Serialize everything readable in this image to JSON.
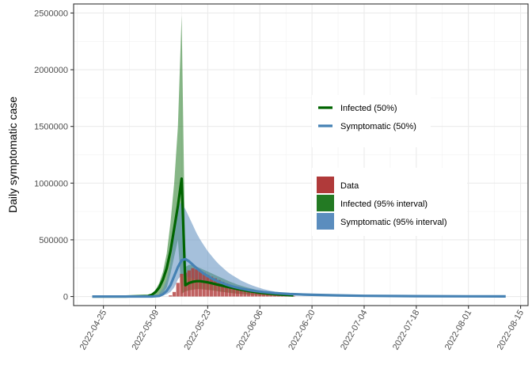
{
  "chart_data": {
    "type": "area",
    "title": "",
    "xlabel": "",
    "ylabel": "Daily symptomatic case",
    "x_ticks": [
      "2022-04-25",
      "2022-05-09",
      "2022-05-23",
      "2022-06-06",
      "2022-06-20",
      "2022-07-04",
      "2022-07-18",
      "2022-08-01",
      "2022-08-15"
    ],
    "y_ticks": [
      "0",
      "500000",
      "1000000",
      "1500000",
      "2000000",
      "2500000"
    ],
    "xlim": [
      "2022-04-17",
      "2022-08-17"
    ],
    "ylim": [
      -80000,
      2580000
    ],
    "grid": true,
    "x_axis": {
      "type": "date",
      "start": "2022-04-17",
      "end": "2022-08-17"
    },
    "legend_lines": [
      {
        "label": "Infected (50%)",
        "color": "#006400"
      },
      {
        "label": "Symptomatic (50%)",
        "color": "#4682B4"
      }
    ],
    "legend_fills": [
      {
        "label": "Data",
        "color": "#B03A3A"
      },
      {
        "label": "Infected (95% interval)",
        "color": "#237A23"
      },
      {
        "label": "Symptomatic (95% interval)",
        "color": "#5B8DBE"
      }
    ],
    "legend_position": "right-inside",
    "series": [
      {
        "name": "Data",
        "kind": "bar",
        "color": "#B03A3A",
        "x": [
          "2022-05-13",
          "2022-05-14",
          "2022-05-15",
          "2022-05-16",
          "2022-05-17",
          "2022-05-18",
          "2022-05-19",
          "2022-05-20",
          "2022-05-21",
          "2022-05-22",
          "2022-05-23",
          "2022-05-24",
          "2022-05-25",
          "2022-05-26",
          "2022-05-27",
          "2022-05-28",
          "2022-05-29",
          "2022-05-30",
          "2022-05-31",
          "2022-06-01",
          "2022-06-02",
          "2022-06-03",
          "2022-06-04",
          "2022-06-05",
          "2022-06-06",
          "2022-06-07",
          "2022-06-08",
          "2022-06-09",
          "2022-06-10",
          "2022-06-11",
          "2022-06-12",
          "2022-06-13",
          "2022-06-14",
          "2022-06-15"
        ],
        "values": [
          10000,
          40000,
          120000,
          200000,
          210000,
          230000,
          250000,
          240000,
          225000,
          210000,
          190000,
          175000,
          160000,
          145000,
          130000,
          115000,
          100000,
          90000,
          80000,
          72000,
          65000,
          58000,
          50000,
          44000,
          38000,
          33000,
          28000,
          24000,
          20000,
          16000,
          13000,
          10000,
          8000,
          5000
        ]
      },
      {
        "name": "Infected (95% interval)",
        "kind": "band",
        "color": "#237A23",
        "x": [
          "2022-05-07",
          "2022-05-08",
          "2022-05-09",
          "2022-05-10",
          "2022-05-11",
          "2022-05-12",
          "2022-05-13",
          "2022-05-14",
          "2022-05-15",
          "2022-05-16",
          "2022-05-17",
          "2022-05-18",
          "2022-05-19",
          "2022-05-20",
          "2022-05-21",
          "2022-05-22",
          "2022-05-23",
          "2022-05-24",
          "2022-05-25",
          "2022-05-26",
          "2022-05-27",
          "2022-05-28",
          "2022-05-29",
          "2022-05-30",
          "2022-05-31",
          "2022-06-01",
          "2022-06-02",
          "2022-06-03",
          "2022-06-04",
          "2022-06-05",
          "2022-06-06",
          "2022-06-07",
          "2022-06-08",
          "2022-06-09",
          "2022-06-10",
          "2022-06-11",
          "2022-06-12",
          "2022-06-13",
          "2022-06-14",
          "2022-06-15"
        ],
        "lower": [
          0,
          0,
          0,
          10000,
          30000,
          80000,
          200000,
          350000,
          500000,
          25000,
          45000,
          55000,
          60000,
          65000,
          65000,
          62000,
          58000,
          55000,
          50000,
          45000,
          40000,
          36000,
          32000,
          28000,
          25000,
          22000,
          19000,
          16000,
          14000,
          12000,
          10000,
          8500,
          7000,
          6000,
          5000,
          4000,
          3000,
          2500,
          2000,
          1000
        ],
        "upper": [
          5000,
          20000,
          60000,
          120000,
          220000,
          380000,
          650000,
          1000000,
          1500000,
          2480000,
          260000,
          280000,
          275000,
          265000,
          250000,
          235000,
          220000,
          205000,
          190000,
          175000,
          160000,
          145000,
          130000,
          118000,
          105000,
          95000,
          85000,
          76000,
          68000,
          60000,
          53000,
          47000,
          41000,
          36000,
          31000,
          27000,
          23000,
          19000,
          16000,
          12000
        ]
      },
      {
        "name": "Symptomatic (95% interval)",
        "kind": "band",
        "color": "#5B8DBE",
        "x": [
          "2022-05-10",
          "2022-05-11",
          "2022-05-12",
          "2022-05-13",
          "2022-05-14",
          "2022-05-15",
          "2022-05-16",
          "2022-05-17",
          "2022-05-18",
          "2022-05-19",
          "2022-05-20",
          "2022-05-21",
          "2022-05-22",
          "2022-05-23",
          "2022-05-24",
          "2022-05-25",
          "2022-05-26",
          "2022-05-27",
          "2022-05-28",
          "2022-05-29",
          "2022-05-30",
          "2022-05-31",
          "2022-06-01",
          "2022-06-02",
          "2022-06-03",
          "2022-06-04",
          "2022-06-05",
          "2022-06-06",
          "2022-06-07",
          "2022-06-08",
          "2022-06-09",
          "2022-06-10",
          "2022-06-12",
          "2022-06-14",
          "2022-06-16",
          "2022-06-18",
          "2022-06-20"
        ],
        "lower": [
          0,
          10000,
          20000,
          40000,
          80000,
          150000,
          190000,
          180000,
          170000,
          160000,
          150000,
          140000,
          130000,
          120000,
          110000,
          100000,
          90000,
          82000,
          75000,
          68000,
          62000,
          56000,
          50000,
          45000,
          40000,
          36000,
          32000,
          28000,
          24000,
          21000,
          18000,
          16000,
          12000,
          9000,
          7000,
          5000,
          4000
        ],
        "upper": [
          30000,
          70000,
          150000,
          300000,
          550000,
          800000,
          830000,
          770000,
          700000,
          630000,
          560000,
          500000,
          450000,
          400000,
          360000,
          320000,
          285000,
          255000,
          225000,
          200000,
          180000,
          160000,
          140000,
          125000,
          110000,
          97000,
          86000,
          75000,
          65000,
          57000,
          50000,
          44000,
          34000,
          26000,
          20000,
          15000,
          11000
        ]
      },
      {
        "name": "Infected (50%)",
        "kind": "line",
        "color": "#006400",
        "x": [
          "2022-04-22",
          "2022-05-01",
          "2022-05-07",
          "2022-05-08",
          "2022-05-09",
          "2022-05-10",
          "2022-05-11",
          "2022-05-12",
          "2022-05-13",
          "2022-05-14",
          "2022-05-15",
          "2022-05-16",
          "2022-05-17",
          "2022-05-18",
          "2022-05-19",
          "2022-05-20",
          "2022-05-21",
          "2022-05-22",
          "2022-05-23",
          "2022-05-24",
          "2022-05-25",
          "2022-05-26",
          "2022-05-27",
          "2022-05-28",
          "2022-05-29",
          "2022-05-30",
          "2022-05-31",
          "2022-06-01",
          "2022-06-02",
          "2022-06-03",
          "2022-06-04",
          "2022-06-05",
          "2022-06-06",
          "2022-06-08",
          "2022-06-10",
          "2022-06-12",
          "2022-06-15"
        ],
        "values": [
          0,
          0,
          5000,
          15000,
          40000,
          80000,
          150000,
          250000,
          400000,
          600000,
          800000,
          1040000,
          100000,
          120000,
          130000,
          135000,
          135000,
          130000,
          125000,
          118000,
          110000,
          102000,
          95000,
          87000,
          80000,
          73000,
          66000,
          60000,
          54000,
          48000,
          43000,
          38000,
          34000,
          27000,
          21000,
          16000,
          10000
        ]
      },
      {
        "name": "Symptomatic (50%)",
        "kind": "line",
        "color": "#4682B4",
        "x": [
          "2022-04-22",
          "2022-05-08",
          "2022-05-10",
          "2022-05-11",
          "2022-05-12",
          "2022-05-13",
          "2022-05-14",
          "2022-05-15",
          "2022-05-16",
          "2022-05-17",
          "2022-05-18",
          "2022-05-19",
          "2022-05-20",
          "2022-05-21",
          "2022-05-22",
          "2022-05-23",
          "2022-05-24",
          "2022-05-25",
          "2022-05-26",
          "2022-05-27",
          "2022-05-28",
          "2022-05-29",
          "2022-05-30",
          "2022-06-01",
          "2022-06-03",
          "2022-06-05",
          "2022-06-07",
          "2022-06-10",
          "2022-06-14",
          "2022-06-20",
          "2022-06-27",
          "2022-07-04",
          "2022-07-18",
          "2022-08-01",
          "2022-08-11"
        ],
        "values": [
          0,
          0,
          5000,
          20000,
          50000,
          100000,
          180000,
          260000,
          320000,
          330000,
          310000,
          280000,
          250000,
          225000,
          200000,
          180000,
          160000,
          145000,
          130000,
          118000,
          105000,
          95000,
          85000,
          70000,
          57000,
          47000,
          39000,
          30000,
          22000,
          15000,
          10000,
          6000,
          3000,
          1500,
          1000
        ]
      }
    ]
  }
}
